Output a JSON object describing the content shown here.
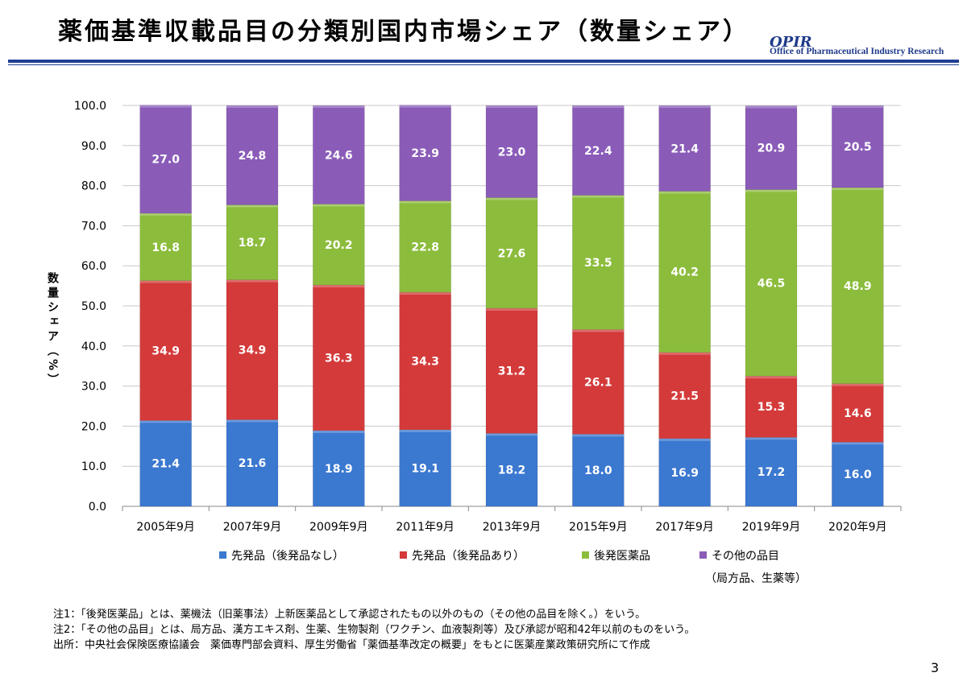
{
  "header": {
    "title": "薬価基準収載品目の分類別国内市場シェア（数量シェア）",
    "logo_text": "OPIR",
    "logo_subtitle": "Office of Pharmaceutical Industry Research"
  },
  "chart_data": {
    "type": "bar",
    "stacked": true,
    "title": "",
    "xlabel": "",
    "ylabel": "数量シェア（%）",
    "ylim": [
      0,
      100
    ],
    "yticks": [
      "0.0",
      "10.0",
      "20.0",
      "30.0",
      "40.0",
      "50.0",
      "60.0",
      "70.0",
      "80.0",
      "90.0",
      "100.0"
    ],
    "categories": [
      "2005年9月",
      "2007年9月",
      "2009年9月",
      "2011年9月",
      "2013年9月",
      "2015年9月",
      "2017年9月",
      "2019年9月",
      "2020年9月"
    ],
    "series": [
      {
        "name": "先発品（後発品なし）",
        "color": "#3b78d0",
        "values": [
          21.4,
          21.6,
          18.9,
          19.1,
          18.2,
          18.0,
          16.9,
          17.2,
          16.0
        ]
      },
      {
        "name": "先発品（後発品あり）",
        "color": "#d43a3a",
        "values": [
          34.9,
          34.9,
          36.3,
          34.3,
          31.2,
          26.1,
          21.5,
          15.3,
          14.6
        ]
      },
      {
        "name": "後発医薬品",
        "color": "#8cbc3c",
        "values": [
          16.8,
          18.7,
          20.2,
          22.8,
          27.6,
          33.5,
          40.2,
          46.5,
          48.9
        ]
      },
      {
        "name": "その他の品目",
        "color": "#8a5cb8",
        "values": [
          27.0,
          24.8,
          24.6,
          23.9,
          23.0,
          22.4,
          21.4,
          20.9,
          20.5
        ]
      }
    ],
    "data_labels": [
      [
        "21.4",
        "21.6",
        "18.9",
        "19.1",
        "18.2",
        "18.0",
        "16.9",
        "17.2",
        "16.0"
      ],
      [
        "34.9",
        "34.9",
        "36.3",
        "34.3",
        "31.2",
        "26.1",
        "21.5",
        "15.3",
        "14.6"
      ],
      [
        "16.8",
        "18.7",
        "20.2",
        "22.8",
        "27.6",
        "33.5",
        "40.2",
        "46.5",
        "48.9"
      ],
      [
        "27.0",
        "24.8",
        "24.6",
        "23.9",
        "23.0",
        "22.4",
        "21.4",
        "20.9",
        "20.5"
      ]
    ],
    "legend_extra": "（局方品、生薬等）",
    "legend_position": "bottom"
  },
  "notes": [
    "注1：「後発医薬品」とは、薬機法（旧薬事法）上新医薬品として承認されたもの以外のもの（その他の品目を除く。）をいう。",
    "注2：「その他の品目」とは、局方品、漢方エキス剤、生薬、生物製剤（ワクチン、血液製剤等）及び承認が昭和42年以前のものをいう。",
    "出所：中央社会保険医療協議会　薬価専門部会資料、厚生労働省「薬価基準改定の概要」をもとに医薬産業政策研究所にて作成"
  ],
  "page_number": "3"
}
